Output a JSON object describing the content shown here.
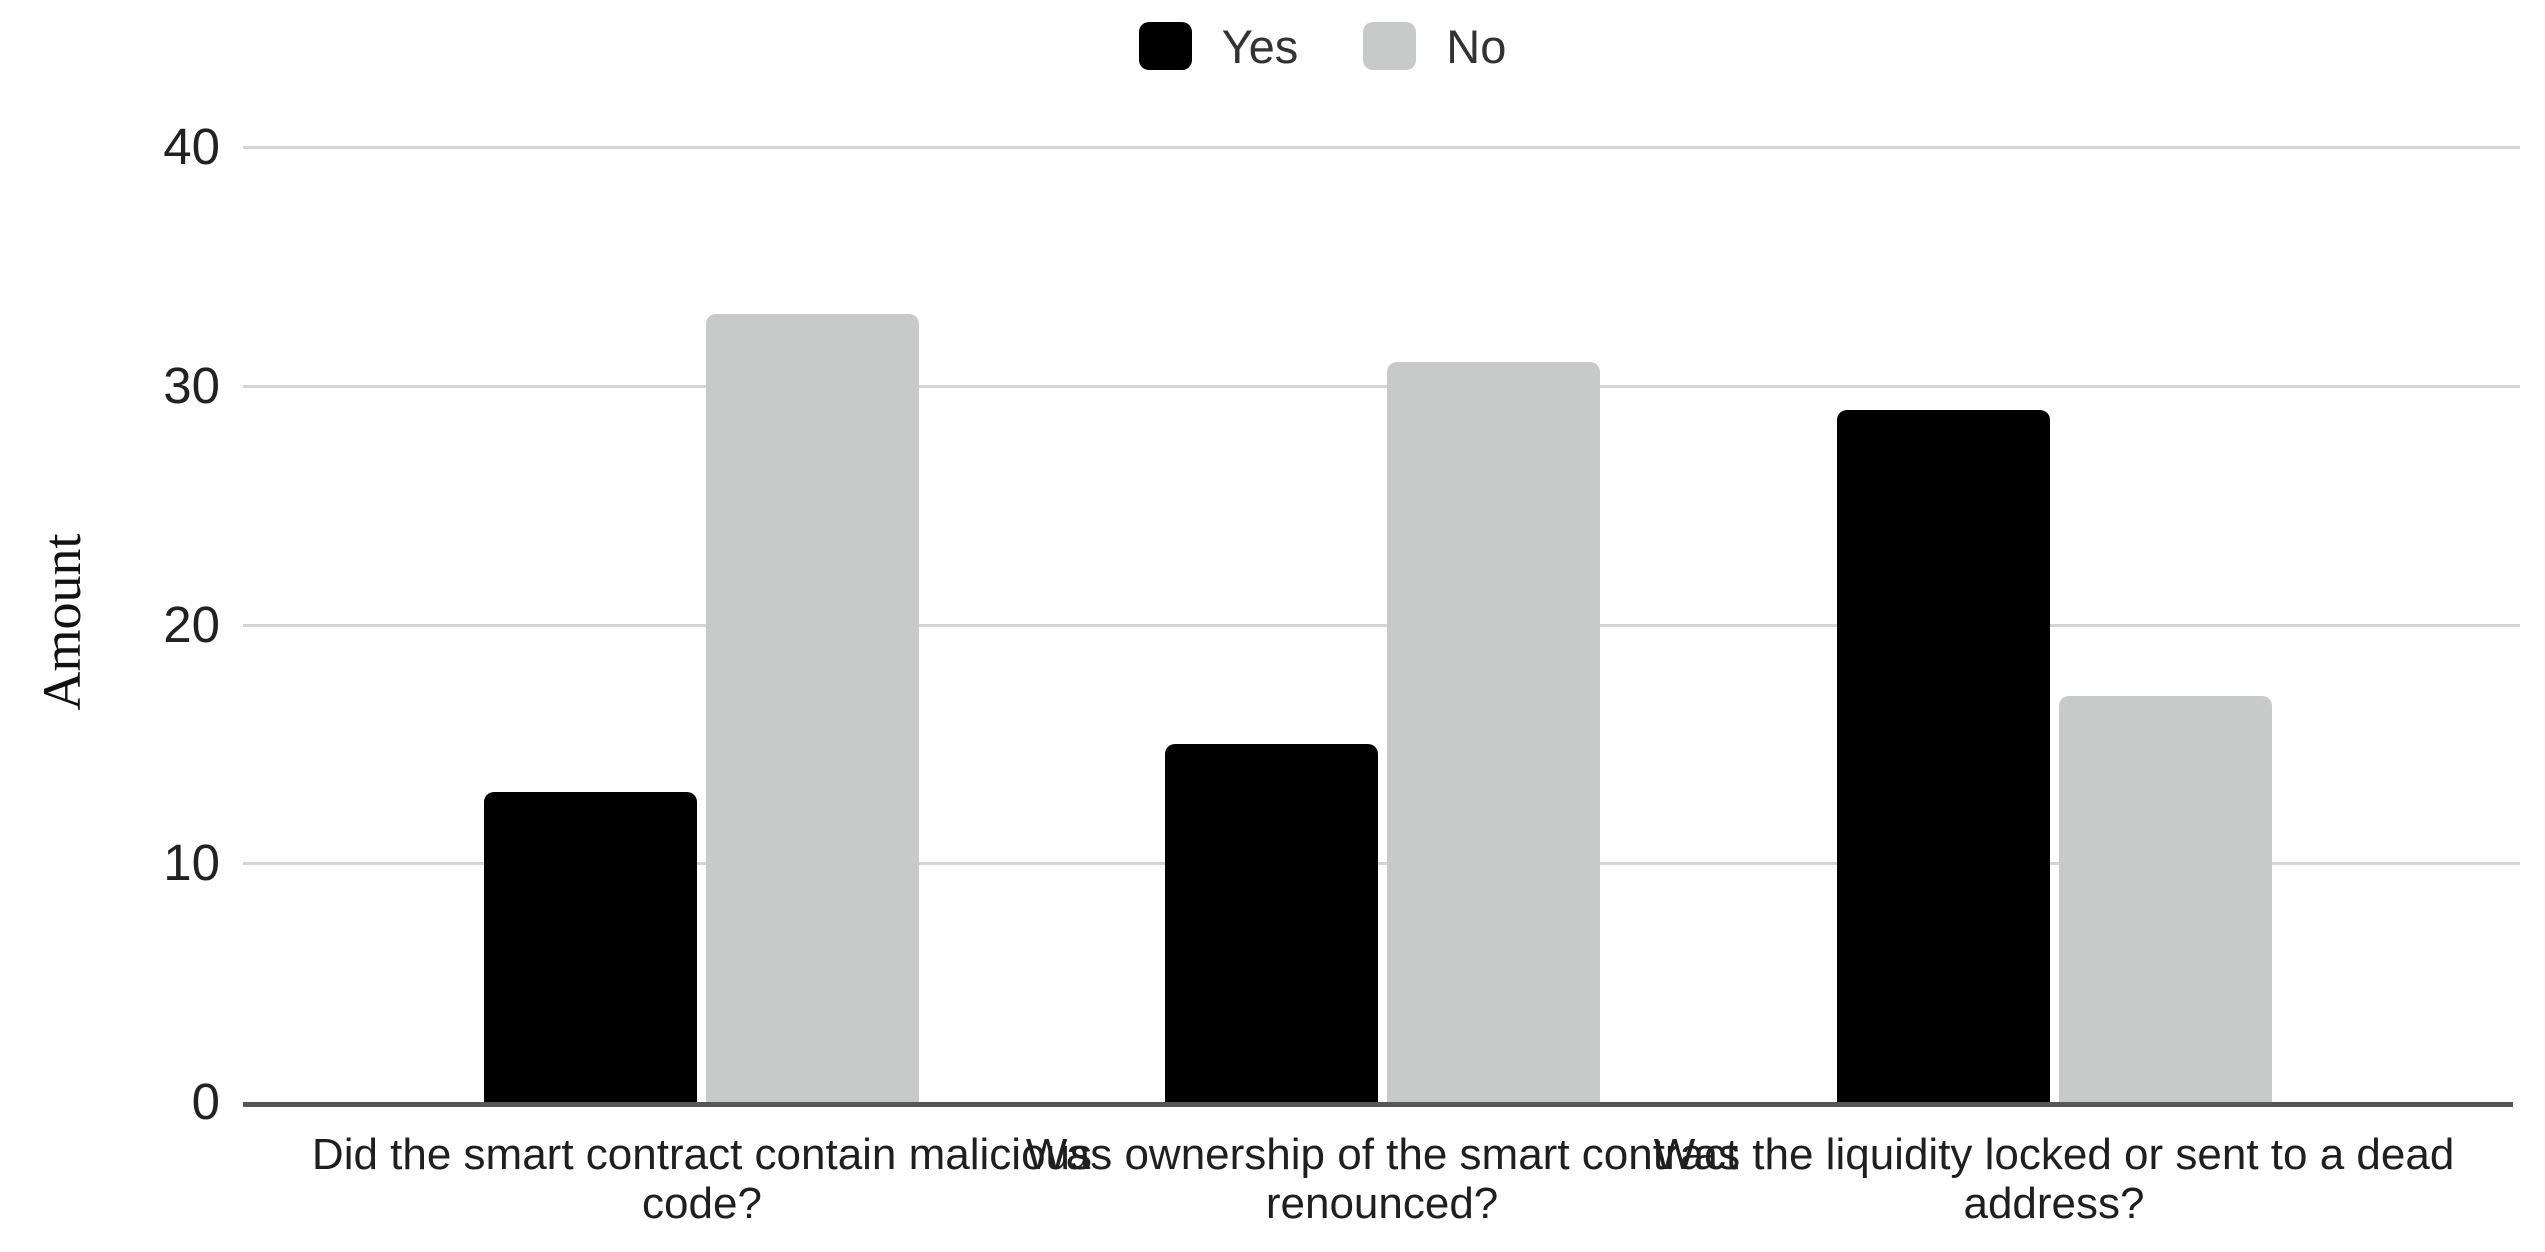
{
  "chart_data": {
    "type": "bar",
    "title": "",
    "categories": [
      "Did the smart contract contain malicious code?",
      "Was ownership of the smart contract renounced?",
      "Was the liquidity locked or sent to a dead address?"
    ],
    "series": [
      {
        "name": "Yes",
        "color": "#000000",
        "values": [
          13,
          15,
          29
        ]
      },
      {
        "name": "No",
        "color": "#c8c9c9",
        "values": [
          33,
          31,
          17
        ]
      }
    ],
    "xlabel": "",
    "ylabel": "Amount",
    "ylim": [
      0,
      40
    ],
    "yticks": [
      40,
      30,
      20,
      10,
      0
    ],
    "grid": true,
    "legend_position": "top-center"
  },
  "colors": {
    "background": "#ffffff",
    "gridline": "#d4d4d4",
    "axis_line": "#565656",
    "tick_text": "#222222",
    "category_text": "#1f1f1f",
    "legend_text": "#333333"
  }
}
